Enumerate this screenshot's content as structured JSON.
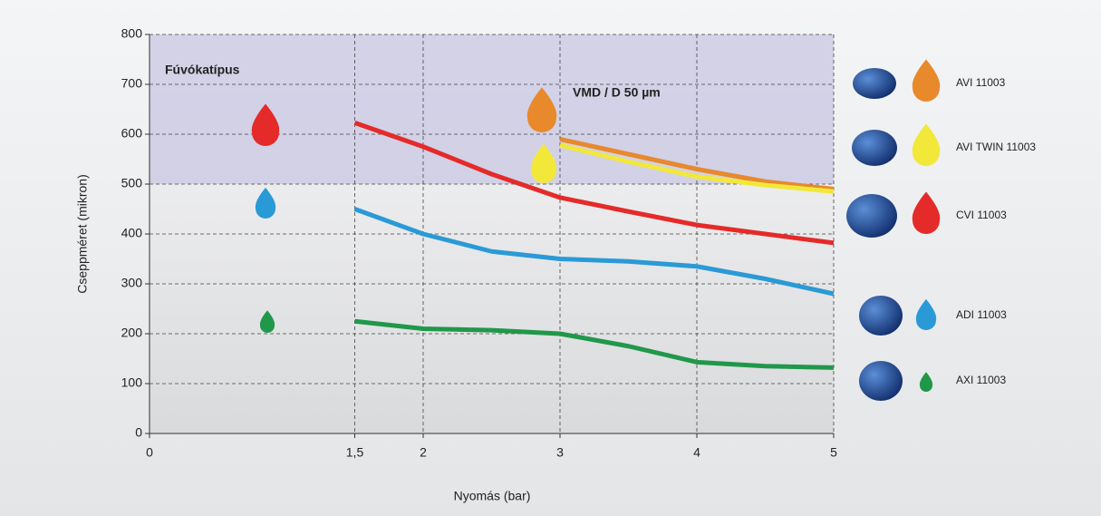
{
  "chart_data": {
    "type": "line",
    "annotations": [
      "Fúvókatípus",
      "VMD / D 50 µm"
    ],
    "xlabel": "Nyomás (bar)",
    "ylabel": "Cseppméret (mikron)",
    "x": [
      1.5,
      2,
      2.5,
      3,
      3.5,
      4,
      4.5,
      5
    ],
    "series": [
      {
        "name": "AVI 11003",
        "color": "#e8892b",
        "values": [
          null,
          null,
          null,
          590,
          560,
          530,
          505,
          490
        ]
      },
      {
        "name": "AVI TWIN 11003",
        "color": "#f2e83a",
        "values": [
          null,
          null,
          null,
          578,
          545,
          515,
          498,
          485
        ]
      },
      {
        "name": "CVI 11003",
        "color": "#e52a2a",
        "values": [
          623,
          575,
          520,
          473,
          445,
          418,
          400,
          382
        ]
      },
      {
        "name": "ADI 11003",
        "color": "#2a9ad6",
        "values": [
          450,
          400,
          365,
          350,
          345,
          335,
          310,
          280
        ]
      },
      {
        "name": "AXI 11003",
        "color": "#20984a",
        "values": [
          225,
          210,
          207,
          200,
          175,
          143,
          135,
          132
        ]
      }
    ],
    "xlim": [
      0,
      5
    ],
    "xticks": [
      0,
      {
        "value": 1.5,
        "label": "1,5"
      },
      2,
      3,
      4,
      5
    ],
    "ylim": [
      0,
      800
    ],
    "yticks": [
      0,
      100,
      200,
      300,
      400,
      500,
      600,
      700,
      800
    ],
    "shaded_range": [
      500,
      800
    ],
    "grid": true
  }
}
